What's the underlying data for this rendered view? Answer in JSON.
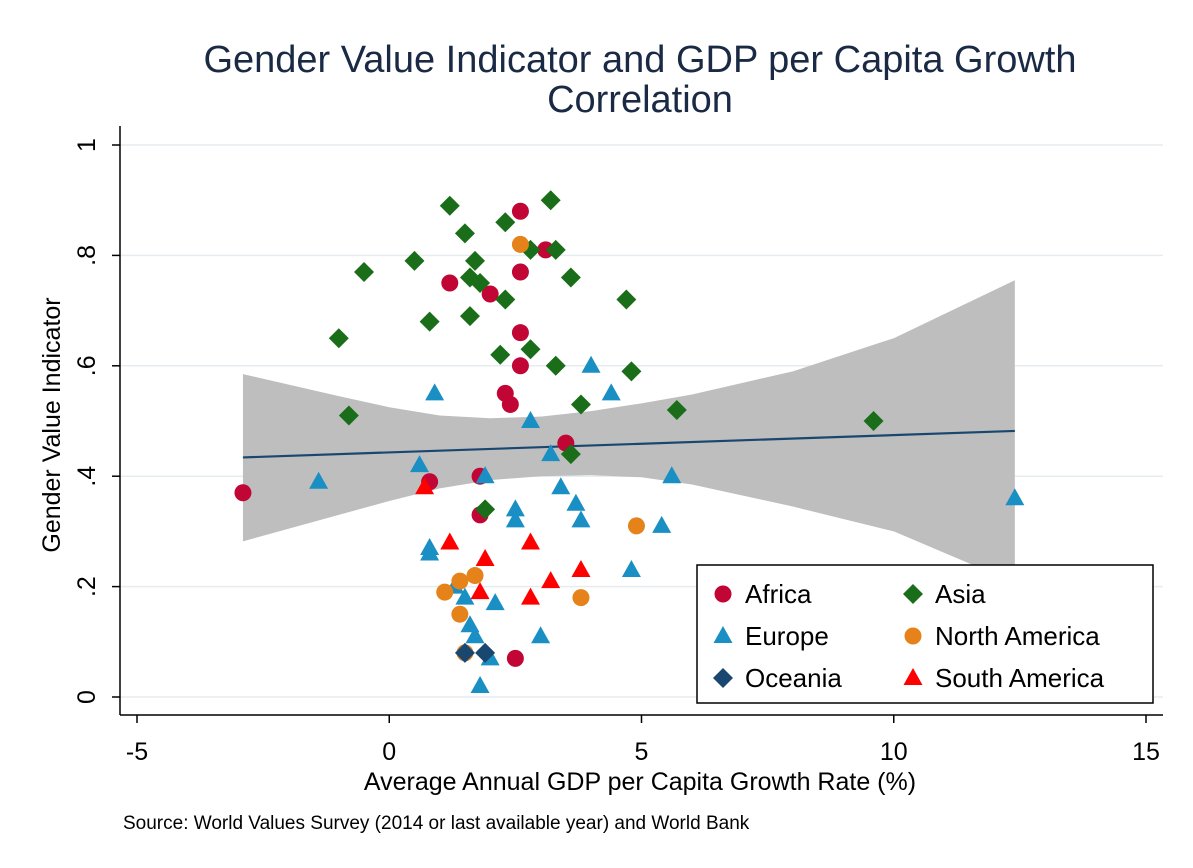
{
  "chart_data": {
    "type": "scatter",
    "title": "Gender Value Indicator and GDP per Capita Growth Correlation",
    "title_lines": [
      "Gender Value Indicator and GDP per Capita Growth",
      "Correlation"
    ],
    "xlabel": "Average Annual GDP per Capita Growth Rate (%)",
    "ylabel": "Gender Value Indicator",
    "source": "Source: World Values Survey (2014 or last available year) and World Bank",
    "xlim": [
      -5,
      15
    ],
    "ylim": [
      0,
      1
    ],
    "x_ticks": [
      {
        "v": -5,
        "label": "-5"
      },
      {
        "v": 0,
        "label": "0"
      },
      {
        "v": 5,
        "label": "5"
      },
      {
        "v": 10,
        "label": "10"
      },
      {
        "v": 15,
        "label": "15"
      }
    ],
    "y_ticks": [
      {
        "v": 0,
        "label": "0"
      },
      {
        "v": 0.2,
        "label": ".2"
      },
      {
        "v": 0.4,
        "label": ".4"
      },
      {
        "v": 0.6,
        "label": ".6"
      },
      {
        "v": 0.8,
        "label": ".8"
      },
      {
        "v": 1,
        "label": "1"
      }
    ],
    "grid": "horizontal",
    "legend_position": "bottom-right",
    "series": [
      {
        "name": "Africa",
        "marker": "circle",
        "color": "#c10534",
        "points": [
          [
            -2.9,
            0.37
          ],
          [
            0.8,
            0.39
          ],
          [
            1.2,
            0.75
          ],
          [
            1.8,
            0.4
          ],
          [
            1.8,
            0.33
          ],
          [
            2.0,
            0.73
          ],
          [
            2.3,
            0.55
          ],
          [
            2.4,
            0.53
          ],
          [
            2.6,
            0.88
          ],
          [
            2.6,
            0.77
          ],
          [
            2.6,
            0.66
          ],
          [
            2.6,
            0.6
          ],
          [
            3.1,
            0.81
          ],
          [
            3.5,
            0.46
          ],
          [
            2.5,
            0.07
          ]
        ]
      },
      {
        "name": "Asia",
        "marker": "diamond",
        "color": "#1a6e1a",
        "points": [
          [
            -1.0,
            0.65
          ],
          [
            -0.8,
            0.51
          ],
          [
            -0.5,
            0.77
          ],
          [
            0.5,
            0.79
          ],
          [
            0.8,
            0.68
          ],
          [
            1.2,
            0.89
          ],
          [
            1.5,
            0.84
          ],
          [
            1.6,
            0.76
          ],
          [
            1.6,
            0.69
          ],
          [
            1.7,
            0.79
          ],
          [
            1.8,
            0.75
          ],
          [
            1.9,
            0.34
          ],
          [
            2.2,
            0.62
          ],
          [
            2.3,
            0.72
          ],
          [
            2.3,
            0.86
          ],
          [
            2.8,
            0.81
          ],
          [
            2.8,
            0.63
          ],
          [
            3.2,
            0.9
          ],
          [
            3.3,
            0.6
          ],
          [
            3.3,
            0.81
          ],
          [
            3.6,
            0.76
          ],
          [
            3.6,
            0.44
          ],
          [
            3.8,
            0.53
          ],
          [
            4.7,
            0.72
          ],
          [
            4.8,
            0.59
          ],
          [
            5.7,
            0.52
          ],
          [
            9.6,
            0.5
          ]
        ]
      },
      {
        "name": "Europe",
        "marker": "triangle",
        "color": "#1a8fc4",
        "points": [
          [
            -1.4,
            0.39
          ],
          [
            0.6,
            0.42
          ],
          [
            0.8,
            0.27
          ],
          [
            0.8,
            0.26
          ],
          [
            0.9,
            0.55
          ],
          [
            1.3,
            0.2
          ],
          [
            1.5,
            0.18
          ],
          [
            1.6,
            0.13
          ],
          [
            1.7,
            0.11
          ],
          [
            1.8,
            0.02
          ],
          [
            1.9,
            0.4
          ],
          [
            2.0,
            0.07
          ],
          [
            2.1,
            0.17
          ],
          [
            2.5,
            0.34
          ],
          [
            2.5,
            0.32
          ],
          [
            2.8,
            0.5
          ],
          [
            3.0,
            0.11
          ],
          [
            3.2,
            0.44
          ],
          [
            3.4,
            0.38
          ],
          [
            3.7,
            0.35
          ],
          [
            3.8,
            0.32
          ],
          [
            4.0,
            0.6
          ],
          [
            4.4,
            0.55
          ],
          [
            4.8,
            0.23
          ],
          [
            5.4,
            0.31
          ],
          [
            5.6,
            0.4
          ],
          [
            12.4,
            0.36
          ]
        ]
      },
      {
        "name": "North America",
        "marker": "circle",
        "color": "#e5821a",
        "points": [
          [
            1.1,
            0.19
          ],
          [
            1.4,
            0.21
          ],
          [
            1.4,
            0.15
          ],
          [
            1.5,
            0.08
          ],
          [
            1.7,
            0.22
          ],
          [
            2.6,
            0.82
          ],
          [
            3.8,
            0.18
          ],
          [
            4.9,
            0.31
          ]
        ]
      },
      {
        "name": "Oceania",
        "marker": "diamond",
        "color": "#1a476f",
        "points": [
          [
            1.5,
            0.08
          ],
          [
            1.9,
            0.08
          ]
        ]
      },
      {
        "name": "South America",
        "marker": "triangle",
        "color": "#ff0000",
        "points": [
          [
            0.7,
            0.38
          ],
          [
            1.2,
            0.28
          ],
          [
            1.8,
            0.19
          ],
          [
            1.9,
            0.25
          ],
          [
            2.8,
            0.18
          ],
          [
            2.8,
            0.28
          ],
          [
            3.2,
            0.21
          ],
          [
            3.8,
            0.23
          ]
        ]
      }
    ],
    "fit_line": {
      "type": "linear",
      "color": "#1a476f",
      "x_range": [
        -2.9,
        12.4
      ],
      "y_start": 0.434,
      "y_end": 0.482
    },
    "confidence_band": {
      "color": "#bebebe",
      "x": [
        -2.9,
        -1,
        0,
        1,
        2,
        3,
        4,
        5,
        6,
        8,
        10,
        12.4
      ],
      "upper": [
        0.585,
        0.545,
        0.525,
        0.51,
        0.505,
        0.508,
        0.518,
        0.532,
        0.548,
        0.59,
        0.65,
        0.755
      ],
      "lower": [
        0.282,
        0.33,
        0.355,
        0.378,
        0.393,
        0.4,
        0.402,
        0.398,
        0.385,
        0.345,
        0.3,
        0.207
      ]
    },
    "legend_columns": [
      [
        "Africa",
        "Europe",
        "Oceania"
      ],
      [
        "Asia",
        "North America",
        "South America"
      ]
    ]
  }
}
